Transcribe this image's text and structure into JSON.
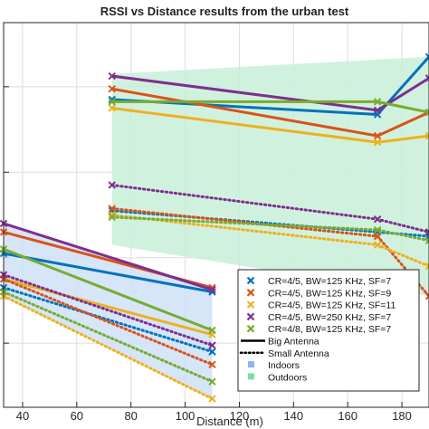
{
  "chart_data": {
    "type": "line",
    "title": "RSSI vs Distance results from the urban test",
    "xlabel": "Distance (m)",
    "ylabel": "",
    "xlim": [
      33,
      190
    ],
    "ylim": [
      -125,
      -35
    ],
    "xticks": [
      40,
      60,
      80,
      100,
      120,
      140,
      160,
      180
    ],
    "grid": true,
    "legend_position": "bottom-right",
    "series": [
      {
        "name": "CR=4/5, BW=125 KHz, SF=7",
        "color": "#0072BD",
        "antenna": "Big Antenna",
        "x": [
          33,
          110
        ],
        "y": [
          -89,
          -98
        ]
      },
      {
        "name": "CR=4/5, BW=125 KHz, SF=9",
        "color": "#D95319",
        "antenna": "Big Antenna",
        "x": [
          33,
          110
        ],
        "y": [
          -84,
          -97
        ]
      },
      {
        "name": "CR=4/5, BW=125 KHz, SF=11",
        "color": "#EDB120",
        "antenna": "Big Antenna",
        "x": [
          33,
          110
        ],
        "y": [
          -95,
          -108
        ]
      },
      {
        "name": "CR=4/5, BW=250 KHz, SF=7",
        "color": "#7E2F8E",
        "antenna": "Big Antenna",
        "x": [
          33,
          110
        ],
        "y": [
          -82,
          -97.5
        ]
      },
      {
        "name": "CR=4/8, BW=125 KHz, SF=7",
        "color": "#77AC30",
        "antenna": "Big Antenna",
        "x": [
          33,
          110
        ],
        "y": [
          -88,
          -107
        ]
      },
      {
        "name": "CR=4/5, BW=125 KHz, SF=7",
        "color": "#0072BD",
        "antenna": "Small Antenna",
        "x": [
          33,
          110
        ],
        "y": [
          -97,
          -112
        ]
      },
      {
        "name": "CR=4/5, BW=125 KHz, SF=9",
        "color": "#D95319",
        "antenna": "Small Antenna",
        "x": [
          33,
          110
        ],
        "y": [
          -95,
          -115
        ]
      },
      {
        "name": "CR=4/5, BW=125 KHz, SF=11",
        "color": "#EDB120",
        "antenna": "Small Antenna",
        "x": [
          33,
          110
        ],
        "y": [
          -99,
          -123
        ]
      },
      {
        "name": "CR=4/5, BW=250 KHz, SF=7",
        "color": "#7E2F8E",
        "antenna": "Small Antenna",
        "x": [
          33,
          110
        ],
        "y": [
          -94,
          -110.5
        ]
      },
      {
        "name": "CR=4/8, BW=125 KHz, SF=7",
        "color": "#77AC30",
        "antenna": "Small Antenna",
        "x": [
          33,
          110
        ],
        "y": [
          -98,
          -119
        ]
      },
      {
        "name": "CR=4/5, BW=125 KHz, SF=7",
        "color": "#0072BD",
        "antenna": "Big Antenna",
        "x": [
          73,
          171,
          190
        ],
        "y": [
          -53,
          -56.5,
          -43
        ]
      },
      {
        "name": "CR=4/5, BW=125 KHz, SF=9",
        "color": "#D95319",
        "antenna": "Big Antenna",
        "x": [
          73,
          171,
          190
        ],
        "y": [
          -50.5,
          -61.5,
          -56
        ]
      },
      {
        "name": "CR=4/5, BW=125 KHz, SF=11",
        "color": "#EDB120",
        "antenna": "Big Antenna",
        "x": [
          73,
          171,
          190
        ],
        "y": [
          -55,
          -63,
          -61.5
        ]
      },
      {
        "name": "CR=4/5, BW=250 KHz, SF=7",
        "color": "#7E2F8E",
        "antenna": "Big Antenna",
        "x": [
          73,
          171,
          190
        ],
        "y": [
          -47.5,
          -55.5,
          -48
        ]
      },
      {
        "name": "CR=4/8, BW=125 KHz, SF=7",
        "color": "#77AC30",
        "antenna": "Big Antenna",
        "x": [
          73,
          171,
          190
        ],
        "y": [
          -53.5,
          -53.5,
          -56
        ]
      },
      {
        "name": "CR=4/5, BW=125 KHz, SF=7",
        "color": "#0072BD",
        "antenna": "Small Antenna",
        "x": [
          73,
          171,
          190
        ],
        "y": [
          -79,
          -84,
          -85
        ]
      },
      {
        "name": "CR=4/5, BW=125 KHz, SF=9",
        "color": "#D95319",
        "antenna": "Small Antenna",
        "x": [
          73,
          171,
          190
        ],
        "y": [
          -78.5,
          -85,
          -99
        ]
      },
      {
        "name": "CR=4/5, BW=125 KHz, SF=11",
        "color": "#EDB120",
        "antenna": "Small Antenna",
        "x": [
          73,
          171,
          190
        ],
        "y": [
          -80,
          -87,
          -92
        ]
      },
      {
        "name": "CR=4/5, BW=250 KHz, SF=7",
        "color": "#7E2F8E",
        "antenna": "Small Antenna",
        "x": [
          73,
          171,
          190
        ],
        "y": [
          -73,
          -81,
          -84
        ]
      },
      {
        "name": "CR=4/8, BW=125 KHz, SF=7",
        "color": "#77AC30",
        "antenna": "Small Antenna",
        "x": [
          73,
          171,
          190
        ],
        "y": [
          -80.5,
          -83.5,
          -86
        ]
      }
    ],
    "regions": [
      {
        "name": "Indoors",
        "color": "#cfe0f7",
        "x": [
          33,
          110,
          110,
          33
        ],
        "y": [
          -82,
          -97.5,
          -123,
          -99
        ]
      },
      {
        "name": "Outdoors",
        "color": "#c9efd9",
        "x": [
          73,
          190,
          190,
          73
        ],
        "y": [
          -47,
          -43,
          -99,
          -87
        ]
      }
    ],
    "legend": {
      "series": [
        {
          "label": "CR=4/5, BW=125 KHz, SF=7",
          "color": "#0072BD"
        },
        {
          "label": "CR=4/5, BW=125 KHz, SF=9",
          "color": "#D95319"
        },
        {
          "label": "CR=4/5, BW=125 KHz, SF=11",
          "color": "#EDB120"
        },
        {
          "label": "CR=4/5, BW=250 KHz, SF=7",
          "color": "#7E2F8E"
        },
        {
          "label": "CR=4/8, BW=125 KHz, SF=7",
          "color": "#77AC30"
        }
      ],
      "lines": [
        {
          "label": "Big Antenna",
          "style": "solid"
        },
        {
          "label": "Small Antenna",
          "style": "dotted"
        }
      ],
      "areas": [
        {
          "label": "Indoors",
          "color": "#8fb6e8"
        },
        {
          "label": "Outdoors",
          "color": "#7fdca6"
        }
      ]
    }
  }
}
